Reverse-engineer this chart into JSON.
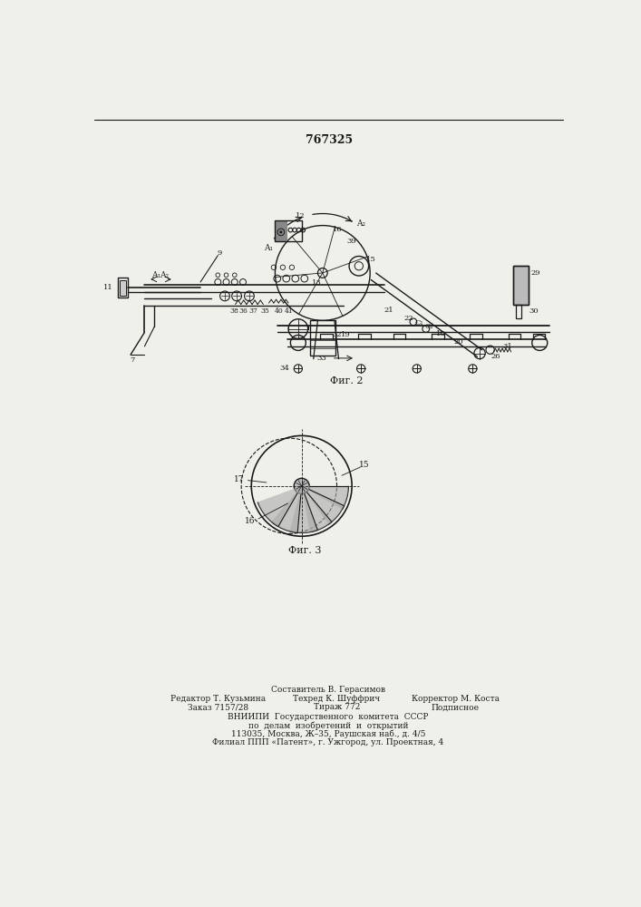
{
  "patent_number": "767325",
  "background_color": "#f0f0eb",
  "line_color": "#1a1a1a",
  "text_color": "#1a1a1a",
  "footer_lines": [
    "Составитель В. Герасимов",
    "Редактор Т. Кузьмина",
    "Техред К. Шуффрич",
    "Корректор М. Коста",
    "Заказ 7157/28",
    "Тираж 772",
    "Подписное",
    "ВНИИПИ  Государственного  комитета  СССР",
    "по  делам  изобретений  и  открытий",
    "113035, Москва, Ж–35, Раушская наб., д. 4/5",
    "Филиал ППП «Патент», г. Ужгород, ул. Проектная, 4"
  ]
}
